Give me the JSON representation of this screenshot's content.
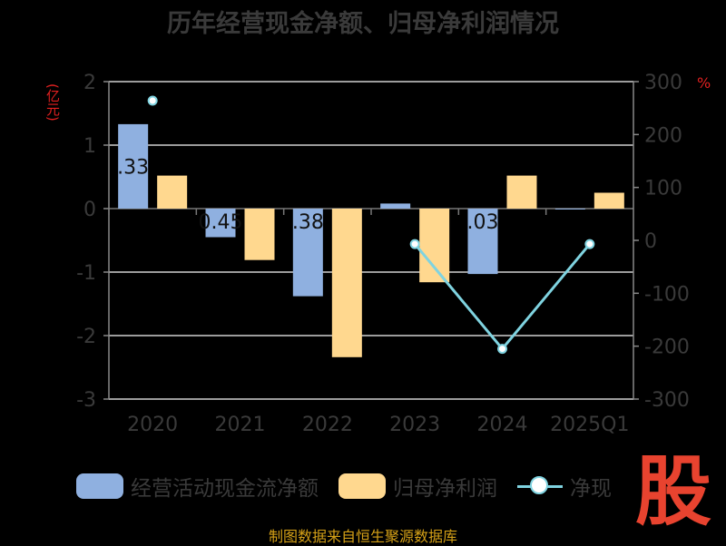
{
  "title": "历年经营现金净额、归母净利润情况",
  "unit_left": "(亿元)",
  "unit_right": "%",
  "legend": {
    "bar1": "经营活动现金流净额",
    "bar2": "归母净利润",
    "line": "净现"
  },
  "logo_text": "股",
  "source": "制图数据来自恒生聚源数据库",
  "colors": {
    "bar1": "#8fb0e0",
    "bar2": "#ffd88f",
    "line": "#7fd3e0",
    "unit": "#e02020",
    "source": "#d4a017",
    "logo": "#e8432f"
  },
  "chart_data": {
    "type": "bar",
    "categories": [
      "2020",
      "2021",
      "2022",
      "2023",
      "2024",
      "2025Q1"
    ],
    "ylim": [
      -3,
      2
    ],
    "yticks": [
      "2",
      "1",
      "0",
      "-1",
      "-2",
      "-3"
    ],
    "y2lim": [
      -300,
      300
    ],
    "y2ticks": [
      "300",
      "200",
      "100",
      "0",
      "-100",
      "-200",
      "-300"
    ],
    "series": [
      {
        "name": "经营活动现金流净额",
        "type": "bar",
        "values": [
          1.33,
          -0.45,
          -1.38,
          0.08,
          -1.03,
          -0.01
        ]
      },
      {
        "name": "归母净利润",
        "type": "bar",
        "values": [
          0.52,
          -0.81,
          -2.34,
          -1.16,
          0.52,
          0.25
        ]
      },
      {
        "name": "净现",
        "type": "line",
        "axis": "right",
        "values": [
          264,
          null,
          null,
          -7,
          -205,
          -7
        ]
      }
    ],
    "data_labels": [
      ".33",
      "0.45",
      ".38",
      "",
      ".03",
      ""
    ]
  }
}
